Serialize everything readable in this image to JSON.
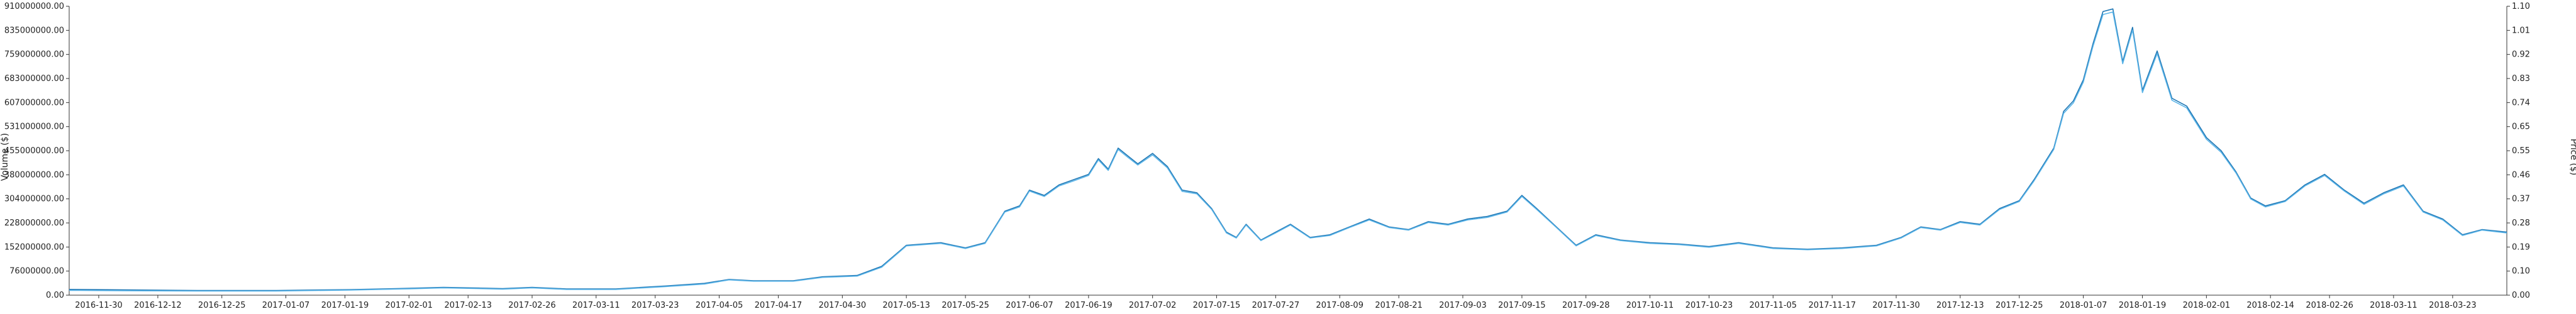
{
  "chart_data": {
    "type": "line",
    "y_left": {
      "label": "Volume ($)",
      "ticks": [
        "0.00",
        "76000000.00",
        "152000000.00",
        "228000000.00",
        "304000000.00",
        "380000000.00",
        "455000000.00",
        "531000000.00",
        "607000000.00",
        "683000000.00",
        "759000000.00",
        "835000000.00",
        "910000000.00"
      ],
      "min": 0,
      "max": 910000000
    },
    "y_right": {
      "label": "Price ($)",
      "ticks": [
        "0.00",
        "0.10",
        "0.19",
        "0.28",
        "0.37",
        "0.46",
        "0.55",
        "0.65",
        "0.74",
        "0.83",
        "0.92",
        "1.01",
        "1.10"
      ],
      "min": 0,
      "max": 1.1
    },
    "x_ticks": [
      "2016-11-30",
      "2016-12-12",
      "2016-12-25",
      "2017-01-07",
      "2017-01-19",
      "2017-02-01",
      "2017-02-13",
      "2017-02-26",
      "2017-03-11",
      "2017-03-23",
      "2017-04-05",
      "2017-04-17",
      "2017-04-30",
      "2017-05-13",
      "2017-05-25",
      "2017-06-07",
      "2017-06-19",
      "2017-07-02",
      "2017-07-15",
      "2017-07-27",
      "2017-08-09",
      "2017-08-21",
      "2017-09-03",
      "2017-09-15",
      "2017-09-28",
      "2017-10-11",
      "2017-10-23",
      "2017-11-05",
      "2017-11-17",
      "2017-11-30",
      "2017-12-13",
      "2017-12-25",
      "2018-01-07",
      "2018-01-19",
      "2018-02-01",
      "2018-02-14",
      "2018-02-26",
      "2018-03-11",
      "2018-03-23"
    ],
    "x_range": [
      "2016-11-24",
      "2018-04-03"
    ],
    "series": [
      {
        "color": "#1f77b4",
        "axis": "right",
        "points": [
          [
            "2016-11-24",
            0.022
          ],
          [
            "2016-12-05",
            0.02
          ],
          [
            "2016-12-20",
            0.018
          ],
          [
            "2017-01-05",
            0.018
          ],
          [
            "2017-01-20",
            0.021
          ],
          [
            "2017-02-01",
            0.026
          ],
          [
            "2017-02-08",
            0.03
          ],
          [
            "2017-02-20",
            0.025
          ],
          [
            "2017-02-26",
            0.03
          ],
          [
            "2017-03-05",
            0.024
          ],
          [
            "2017-03-15",
            0.024
          ],
          [
            "2017-03-25",
            0.035
          ],
          [
            "2017-04-02",
            0.045
          ],
          [
            "2017-04-07",
            0.06
          ],
          [
            "2017-04-12",
            0.055
          ],
          [
            "2017-04-20",
            0.055
          ],
          [
            "2017-04-26",
            0.07
          ],
          [
            "2017-05-03",
            0.075
          ],
          [
            "2017-05-08",
            0.11
          ],
          [
            "2017-05-13",
            0.19
          ],
          [
            "2017-05-20",
            0.2
          ],
          [
            "2017-05-25",
            0.18
          ],
          [
            "2017-05-29",
            0.2
          ],
          [
            "2017-06-02",
            0.32
          ],
          [
            "2017-06-05",
            0.34
          ],
          [
            "2017-06-07",
            0.4
          ],
          [
            "2017-06-10",
            0.38
          ],
          [
            "2017-06-13",
            0.42
          ],
          [
            "2017-06-16",
            0.44
          ],
          [
            "2017-06-19",
            0.46
          ],
          [
            "2017-06-21",
            0.52
          ],
          [
            "2017-06-23",
            0.48
          ],
          [
            "2017-06-25",
            0.56
          ],
          [
            "2017-06-27",
            0.53
          ],
          [
            "2017-06-29",
            0.5
          ],
          [
            "2017-07-02",
            0.54
          ],
          [
            "2017-07-05",
            0.49
          ],
          [
            "2017-07-08",
            0.4
          ],
          [
            "2017-07-11",
            0.39
          ],
          [
            "2017-07-14",
            0.33
          ],
          [
            "2017-07-17",
            0.24
          ],
          [
            "2017-07-19",
            0.22
          ],
          [
            "2017-07-21",
            0.27
          ],
          [
            "2017-07-24",
            0.21
          ],
          [
            "2017-07-27",
            0.24
          ],
          [
            "2017-07-30",
            0.27
          ],
          [
            "2017-08-03",
            0.22
          ],
          [
            "2017-08-07",
            0.23
          ],
          [
            "2017-08-11",
            0.26
          ],
          [
            "2017-08-15",
            0.29
          ],
          [
            "2017-08-19",
            0.26
          ],
          [
            "2017-08-23",
            0.25
          ],
          [
            "2017-08-27",
            0.28
          ],
          [
            "2017-08-31",
            0.27
          ],
          [
            "2017-09-04",
            0.29
          ],
          [
            "2017-09-08",
            0.3
          ],
          [
            "2017-09-12",
            0.32
          ],
          [
            "2017-09-15",
            0.38
          ],
          [
            "2017-09-18",
            0.33
          ],
          [
            "2017-09-22",
            0.26
          ],
          [
            "2017-09-26",
            0.19
          ],
          [
            "2017-09-30",
            0.23
          ],
          [
            "2017-10-05",
            0.21
          ],
          [
            "2017-10-11",
            0.2
          ],
          [
            "2017-10-17",
            0.195
          ],
          [
            "2017-10-23",
            0.185
          ],
          [
            "2017-10-29",
            0.2
          ],
          [
            "2017-11-05",
            0.18
          ],
          [
            "2017-11-12",
            0.175
          ],
          [
            "2017-11-19",
            0.18
          ],
          [
            "2017-11-26",
            0.19
          ],
          [
            "2017-12-01",
            0.22
          ],
          [
            "2017-12-05",
            0.26
          ],
          [
            "2017-12-09",
            0.25
          ],
          [
            "2017-12-13",
            0.28
          ],
          [
            "2017-12-17",
            0.27
          ],
          [
            "2017-12-21",
            0.33
          ],
          [
            "2017-12-25",
            0.36
          ],
          [
            "2017-12-28",
            0.44
          ],
          [
            "2018-01-01",
            0.56
          ],
          [
            "2018-01-03",
            0.7
          ],
          [
            "2018-01-05",
            0.74
          ],
          [
            "2018-01-07",
            0.82
          ],
          [
            "2018-01-09",
            0.96
          ],
          [
            "2018-01-11",
            1.08
          ],
          [
            "2018-01-13",
            1.09
          ],
          [
            "2018-01-15",
            0.89
          ],
          [
            "2018-01-17",
            1.02
          ],
          [
            "2018-01-19",
            0.78
          ],
          [
            "2018-01-22",
            0.93
          ],
          [
            "2018-01-25",
            0.75
          ],
          [
            "2018-01-28",
            0.72
          ],
          [
            "2018-02-01",
            0.6
          ],
          [
            "2018-02-04",
            0.55
          ],
          [
            "2018-02-07",
            0.47
          ],
          [
            "2018-02-10",
            0.37
          ],
          [
            "2018-02-13",
            0.34
          ],
          [
            "2018-02-17",
            0.36
          ],
          [
            "2018-02-21",
            0.42
          ],
          [
            "2018-02-25",
            0.46
          ],
          [
            "2018-03-01",
            0.4
          ],
          [
            "2018-03-05",
            0.35
          ],
          [
            "2018-03-09",
            0.39
          ],
          [
            "2018-03-13",
            0.42
          ],
          [
            "2018-03-17",
            0.32
          ],
          [
            "2018-03-21",
            0.29
          ],
          [
            "2018-03-25",
            0.23
          ],
          [
            "2018-03-29",
            0.25
          ],
          [
            "2018-04-03",
            0.24
          ]
        ]
      },
      {
        "color": "#5ab4e8",
        "axis": "left",
        "points": [
          [
            "2016-11-24",
            15000000
          ],
          [
            "2016-12-05",
            14000000
          ],
          [
            "2016-12-20",
            13000000
          ],
          [
            "2017-01-05",
            13000000
          ],
          [
            "2017-01-20",
            16000000
          ],
          [
            "2017-02-01",
            20000000
          ],
          [
            "2017-02-08",
            23000000
          ],
          [
            "2017-02-20",
            19000000
          ],
          [
            "2017-02-26",
            23000000
          ],
          [
            "2017-03-05",
            18000000
          ],
          [
            "2017-03-15",
            18000000
          ],
          [
            "2017-03-25",
            27000000
          ],
          [
            "2017-04-02",
            35000000
          ],
          [
            "2017-04-07",
            48000000
          ],
          [
            "2017-04-12",
            44000000
          ],
          [
            "2017-04-20",
            44000000
          ],
          [
            "2017-04-26",
            56000000
          ],
          [
            "2017-05-03",
            60000000
          ],
          [
            "2017-05-08",
            88000000
          ],
          [
            "2017-05-13",
            155000000
          ],
          [
            "2017-05-20",
            163000000
          ],
          [
            "2017-05-25",
            147000000
          ],
          [
            "2017-05-29",
            163000000
          ],
          [
            "2017-06-02",
            262000000
          ],
          [
            "2017-06-05",
            278000000
          ],
          [
            "2017-06-07",
            328000000
          ],
          [
            "2017-06-10",
            311000000
          ],
          [
            "2017-06-13",
            344000000
          ],
          [
            "2017-06-16",
            360000000
          ],
          [
            "2017-06-19",
            377000000
          ],
          [
            "2017-06-21",
            426000000
          ],
          [
            "2017-06-23",
            393000000
          ],
          [
            "2017-06-25",
            459000000
          ],
          [
            "2017-06-27",
            434000000
          ],
          [
            "2017-06-29",
            410000000
          ],
          [
            "2017-07-02",
            442000000
          ],
          [
            "2017-07-05",
            401000000
          ],
          [
            "2017-07-08",
            327000000
          ],
          [
            "2017-07-11",
            319000000
          ],
          [
            "2017-07-14",
            270000000
          ],
          [
            "2017-07-17",
            196000000
          ],
          [
            "2017-07-19",
            180000000
          ],
          [
            "2017-07-21",
            221000000
          ],
          [
            "2017-07-24",
            172000000
          ],
          [
            "2017-07-27",
            196000000
          ],
          [
            "2017-07-30",
            221000000
          ],
          [
            "2017-08-03",
            180000000
          ],
          [
            "2017-08-07",
            188000000
          ],
          [
            "2017-08-11",
            213000000
          ],
          [
            "2017-08-15",
            237000000
          ],
          [
            "2017-08-19",
            213000000
          ],
          [
            "2017-08-23",
            205000000
          ],
          [
            "2017-08-27",
            229000000
          ],
          [
            "2017-08-31",
            221000000
          ],
          [
            "2017-09-04",
            237000000
          ],
          [
            "2017-09-08",
            245000000
          ],
          [
            "2017-09-12",
            262000000
          ],
          [
            "2017-09-15",
            311000000
          ],
          [
            "2017-09-18",
            270000000
          ],
          [
            "2017-09-22",
            213000000
          ],
          [
            "2017-09-26",
            155000000
          ],
          [
            "2017-09-30",
            188000000
          ],
          [
            "2017-10-05",
            172000000
          ],
          [
            "2017-10-11",
            163000000
          ],
          [
            "2017-10-17",
            159000000
          ],
          [
            "2017-10-23",
            151000000
          ],
          [
            "2017-10-29",
            163000000
          ],
          [
            "2017-11-05",
            147000000
          ],
          [
            "2017-11-12",
            143000000
          ],
          [
            "2017-11-19",
            147000000
          ],
          [
            "2017-11-26",
            155000000
          ],
          [
            "2017-12-01",
            180000000
          ],
          [
            "2017-12-05",
            213000000
          ],
          [
            "2017-12-09",
            205000000
          ],
          [
            "2017-12-13",
            229000000
          ],
          [
            "2017-12-17",
            221000000
          ],
          [
            "2017-12-21",
            270000000
          ],
          [
            "2017-12-25",
            295000000
          ],
          [
            "2017-12-28",
            360000000
          ],
          [
            "2018-01-01",
            459000000
          ],
          [
            "2018-01-03",
            573000000
          ],
          [
            "2018-01-05",
            606000000
          ],
          [
            "2018-01-07",
            671000000
          ],
          [
            "2018-01-09",
            786000000
          ],
          [
            "2018-01-11",
            884000000
          ],
          [
            "2018-01-13",
            892000000
          ],
          [
            "2018-01-15",
            729000000
          ],
          [
            "2018-01-17",
            835000000
          ],
          [
            "2018-01-19",
            638000000
          ],
          [
            "2018-01-22",
            761000000
          ],
          [
            "2018-01-25",
            614000000
          ],
          [
            "2018-01-28",
            590000000
          ],
          [
            "2018-02-01",
            491000000
          ],
          [
            "2018-02-04",
            450000000
          ],
          [
            "2018-02-07",
            385000000
          ],
          [
            "2018-02-10",
            303000000
          ],
          [
            "2018-02-13",
            278000000
          ],
          [
            "2018-02-17",
            295000000
          ],
          [
            "2018-02-21",
            344000000
          ],
          [
            "2018-02-25",
            377000000
          ],
          [
            "2018-03-01",
            328000000
          ],
          [
            "2018-03-05",
            286000000
          ],
          [
            "2018-03-09",
            319000000
          ],
          [
            "2018-03-13",
            344000000
          ],
          [
            "2018-03-17",
            262000000
          ],
          [
            "2018-03-21",
            237000000
          ],
          [
            "2018-03-25",
            188000000
          ],
          [
            "2018-03-29",
            205000000
          ],
          [
            "2018-04-03",
            196000000
          ]
        ]
      }
    ]
  }
}
